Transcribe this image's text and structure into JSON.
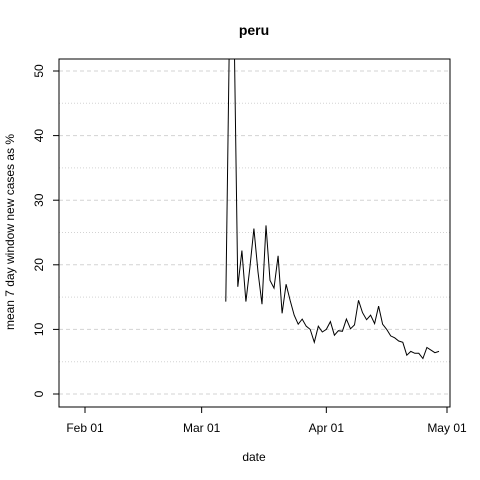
{
  "chart_data": {
    "type": "line",
    "title": "peru",
    "xlabel": "date",
    "ylabel": "mean  7  day window new cases as %",
    "ylim": [
      -2,
      52
    ],
    "x_ticks": [
      {
        "label": "Feb 01",
        "day": 0
      },
      {
        "label": "Mar 01",
        "day": 29
      },
      {
        "label": "Apr 01",
        "day": 60
      },
      {
        "label": "May 01",
        "day": 90
      }
    ],
    "y_ticks": [
      0,
      10,
      20,
      30,
      40,
      50
    ],
    "grid_lines_y": [
      0,
      5,
      10,
      15,
      20,
      25,
      30,
      35,
      40,
      45,
      50
    ],
    "grid_major_y": [
      0,
      10,
      20,
      30,
      40,
      50
    ],
    "series": [
      {
        "name": "peru",
        "x_day_offset": 35,
        "values": [
          14.3,
          60,
          60,
          16.6,
          22.2,
          14.3,
          19.6,
          25.6,
          18.9,
          13.9,
          26.1,
          17.6,
          16.4,
          21.4,
          12.5,
          17.0,
          14.5,
          12.2,
          10.8,
          11.6,
          10.5,
          10.0,
          8.0,
          10.5,
          9.6,
          10.0,
          11.2,
          9.1,
          9.8,
          9.7,
          11.6,
          10.1,
          10.7,
          14.5,
          12.6,
          11.5,
          12.2,
          10.9,
          13.6,
          10.8,
          10.0,
          9.0,
          8.7,
          8.2,
          8.0,
          6.0,
          6.6,
          6.3,
          6.3,
          5.5,
          7.2,
          6.8,
          6.4,
          6.6
        ]
      }
    ],
    "colors": {
      "line": "#000000",
      "grid": "#d3d3d3",
      "axis": "#000000"
    }
  }
}
